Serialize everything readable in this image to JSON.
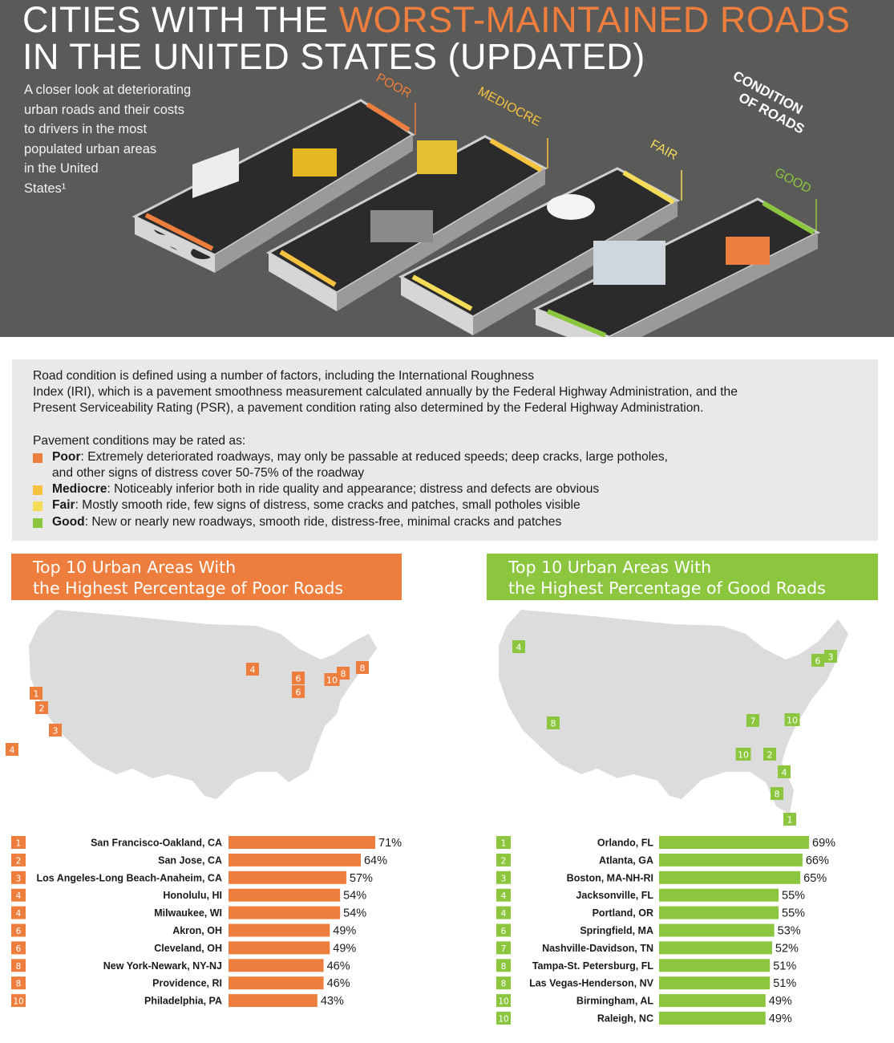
{
  "header": {
    "title_part1": "CITIES WITH THE ",
    "title_accent": "WORST-MAINTAINED ROADS",
    "title_line2": "IN THE UNITED STATES (UPDATED)",
    "subtitle_lines": [
      "A closer look at deteriorating",
      "urban roads and their costs",
      "to drivers in the most",
      "populated urban areas",
      "in the United",
      "States¹"
    ]
  },
  "illustration": {
    "condition_label_line1": "CONDITION",
    "condition_label_line2": "OF ROADS",
    "road_labels": [
      "POOR",
      "MEDIOCRE",
      "FAIR",
      "GOOD"
    ]
  },
  "colors": {
    "poor": "#ee7e3e",
    "mediocre": "#f7c240",
    "fair": "#f5dc58",
    "good": "#8cc63f",
    "hero_bg": "#5a5a58",
    "map": "#dcdcdc"
  },
  "info": {
    "definition_lines": [
      "Road condition is defined using a number of factors, including the International Roughness",
      "Index (IRI), which is a pavement smoothness measurement calculated annually by the Federal Highway Administration, and the",
      "Present Serviceability Rating (PSR), a pavement condition rating also determined by the Federal Highway Administration."
    ],
    "intro": "Pavement conditions may be rated as:",
    "conditions": [
      {
        "name": "Poor",
        "desc": ": Extremely deteriorated roadways, may only be passable at reduced speeds; deep cracks, large potholes,",
        "desc2": "and other signs of distress cover 50-75% of the roadway"
      },
      {
        "name": "Mediocre",
        "desc": ": Noticeably inferior both in ride quality and appearance; distress and defects are obvious"
      },
      {
        "name": "Fair",
        "desc": ": Mostly smooth ride, few signs of distress, some cracks and patches, small potholes visible"
      },
      {
        "name": "Good",
        "desc": ": New or nearly new roadways, smooth ride, distress-free, minimal cracks and patches"
      }
    ]
  },
  "chart_data": [
    {
      "type": "bar",
      "title_line1": "Top 10 Urban Areas With",
      "title_line2": "the Highest Percentage of Poor Roads",
      "ranks": [
        "1",
        "2",
        "3",
        "4",
        "4",
        "6",
        "6",
        "8",
        "8",
        "10"
      ],
      "categories": [
        "San Francisco-Oakland, CA",
        "San Jose, CA",
        "Los Angeles-Long Beach-Anaheim, CA",
        "Honolulu, HI",
        "Milwaukee, WI",
        "Akron, OH",
        "Cleveland, OH",
        "New York-Newark, NY-NJ",
        "Providence, RI",
        "Philadelphia, PA"
      ],
      "values": [
        71,
        64,
        57,
        54,
        54,
        49,
        49,
        46,
        46,
        43
      ],
      "value_labels": [
        "71%",
        "64%",
        "57%",
        "54%",
        "54%",
        "49%",
        "49%",
        "46%",
        "46%",
        "43%"
      ],
      "map_markers": [
        "1",
        "2",
        "3",
        "4",
        "4",
        "6",
        "6",
        "8",
        "8",
        "10"
      ]
    },
    {
      "type": "bar",
      "title_line1": "Top 10 Urban Areas With",
      "title_line2": "the Highest Percentage of Good Roads",
      "ranks": [
        "1",
        "2",
        "3",
        "4",
        "4",
        "6",
        "7",
        "8",
        "8",
        "10",
        "10"
      ],
      "categories": [
        "Orlando, FL",
        "Atlanta, GA",
        "Boston, MA-NH-RI",
        "Jacksonville, FL",
        "Portland, OR",
        "Springfield, MA",
        "Nashville-Davidson, TN",
        "Tampa-St. Petersburg, FL",
        "Las Vegas-Henderson, NV",
        "Birmingham, AL",
        "Raleigh, NC"
      ],
      "values": [
        69,
        66,
        65,
        55,
        55,
        53,
        52,
        51,
        51,
        49,
        49
      ],
      "value_labels": [
        "69%",
        "66%",
        "65%",
        "55%",
        "55%",
        "53%",
        "52%",
        "51%",
        "51%",
        "49%",
        "49%"
      ],
      "map_markers": [
        "1",
        "2",
        "3",
        "4",
        "4",
        "6",
        "7",
        "8",
        "8",
        "10",
        "10"
      ]
    }
  ]
}
